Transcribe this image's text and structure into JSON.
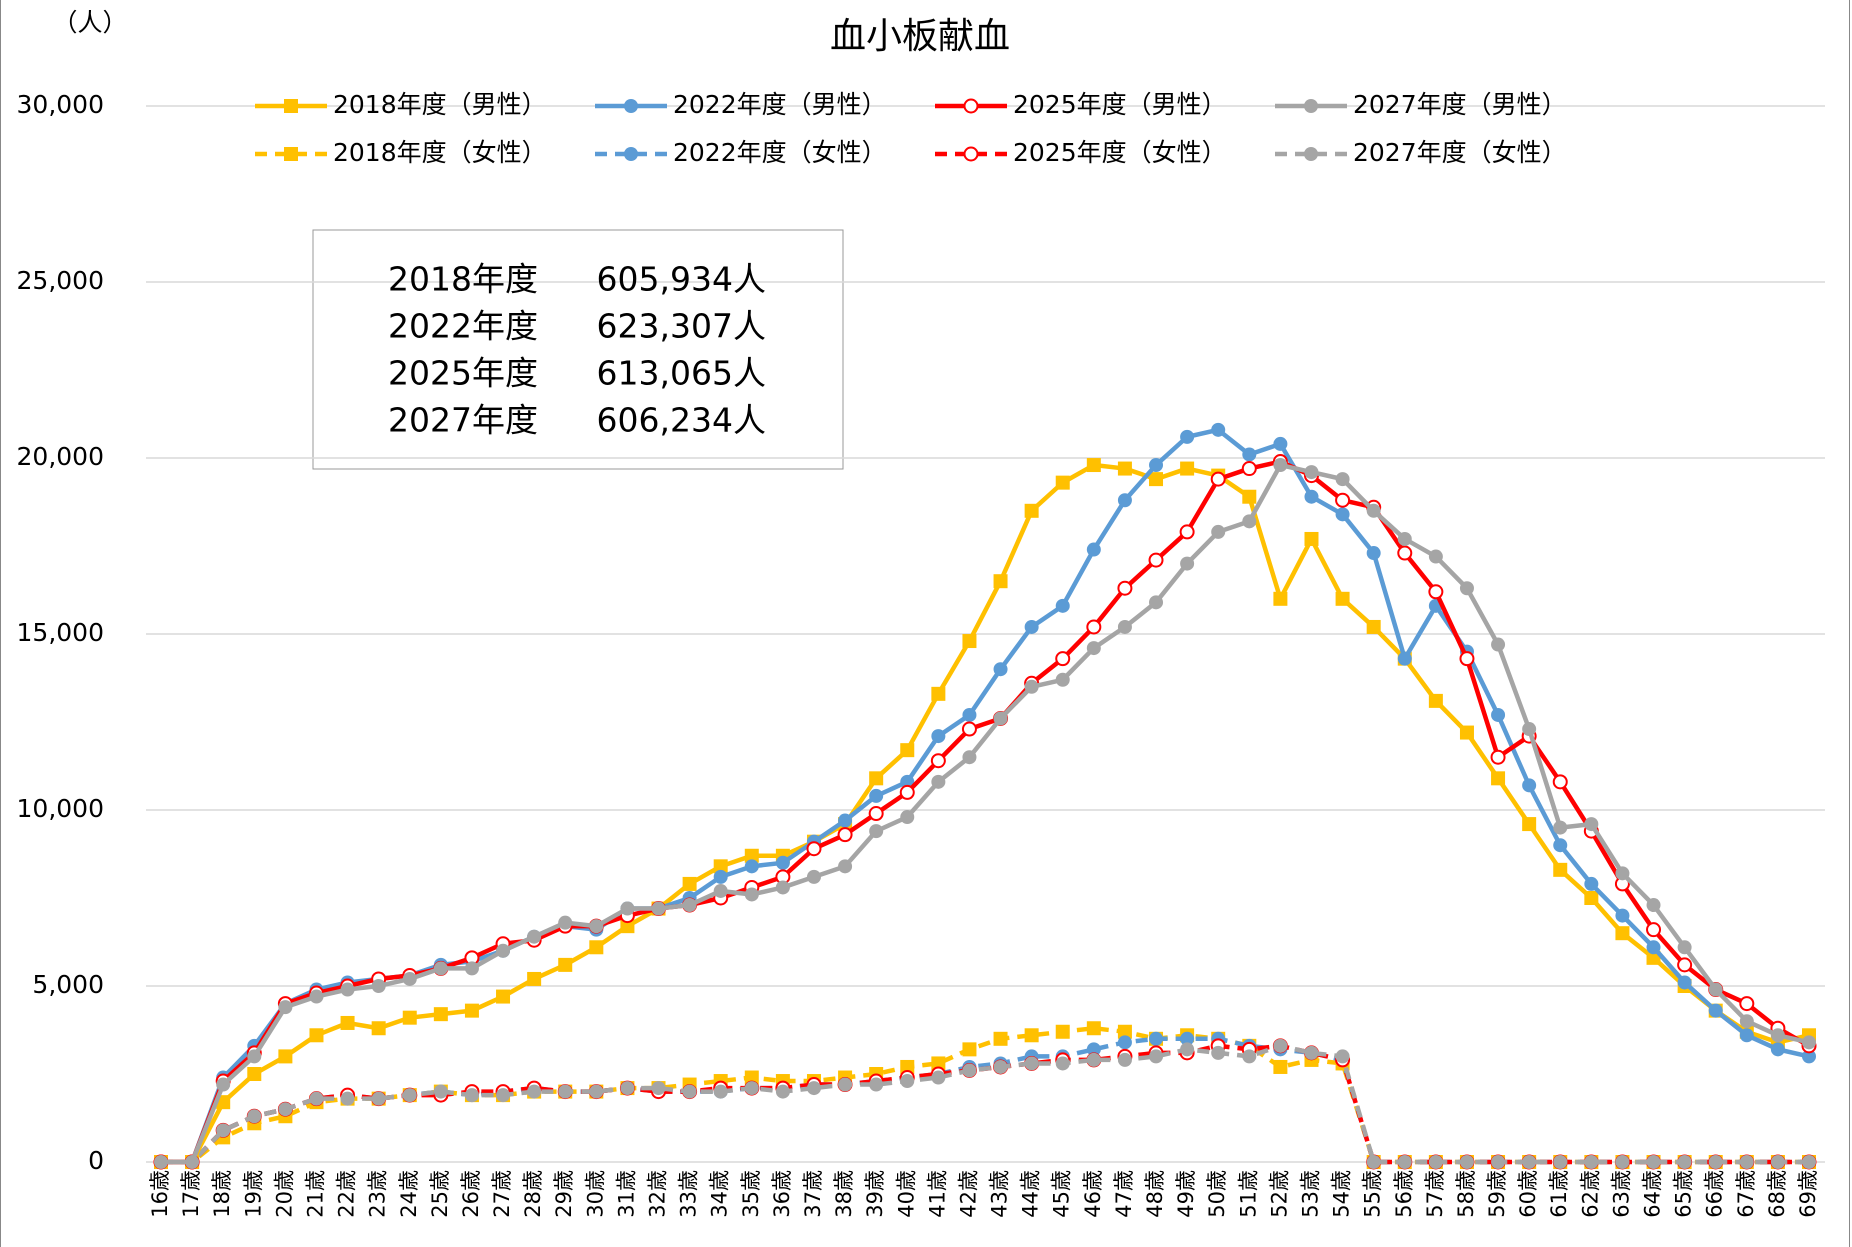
{
  "chart_data": {
    "type": "line",
    "title": "血小板献血",
    "y_unit_label": "（人）",
    "categories": [
      "16歳",
      "17歳",
      "18歳",
      "19歳",
      "20歳",
      "21歳",
      "22歳",
      "23歳",
      "24歳",
      "25歳",
      "26歳",
      "27歳",
      "28歳",
      "29歳",
      "30歳",
      "31歳",
      "32歳",
      "33歳",
      "34歳",
      "35歳",
      "36歳",
      "37歳",
      "38歳",
      "39歳",
      "40歳",
      "41歳",
      "42歳",
      "43歳",
      "44歳",
      "45歳",
      "46歳",
      "47歳",
      "48歳",
      "49歳",
      "50歳",
      "51歳",
      "52歳",
      "53歳",
      "54歳",
      "55歳",
      "56歳",
      "57歳",
      "58歳",
      "59歳",
      "60歳",
      "61歳",
      "62歳",
      "63歳",
      "64歳",
      "65歳",
      "66歳",
      "67歳",
      "68歳",
      "69歳"
    ],
    "ylim": [
      0,
      30000
    ],
    "yticks": [
      0,
      {
        "value": 5000,
        "label": "5,000"
      },
      {
        "value": 10000,
        "label": "10,000"
      },
      {
        "value": 15000,
        "label": "15,000"
      },
      {
        "value": 20000,
        "label": "20,000"
      },
      {
        "value": 25000,
        "label": "25,000"
      },
      {
        "value": 30000,
        "label": "30,000"
      }
    ],
    "grid": true,
    "series": [
      {
        "name": "2018年度（男性）",
        "color": "#FFC000",
        "dash": false,
        "marker": "square",
        "values": [
          0,
          0,
          1700,
          2500,
          3000,
          3600,
          3950,
          3800,
          4100,
          4200,
          4300,
          4700,
          5200,
          5600,
          6100,
          6700,
          7200,
          7900,
          8400,
          8700,
          8700,
          9100,
          9600,
          10900,
          11700,
          13300,
          14800,
          16500,
          18500,
          19300,
          19800,
          19700,
          19400,
          19700,
          19500,
          18900,
          16000,
          17700,
          16000,
          15200,
          14300,
          13100,
          12200,
          10900,
          9600,
          8300,
          7500,
          6500,
          5800,
          5000,
          4300,
          3700,
          3400,
          3600
        ]
      },
      {
        "name": "2022年度（男性）",
        "color": "#5B9BD5",
        "dash": false,
        "marker": "circle",
        "values": [
          0,
          0,
          2400,
          3300,
          4500,
          4900,
          5100,
          5200,
          5300,
          5600,
          5700,
          6000,
          6400,
          6700,
          6600,
          7200,
          7200,
          7500,
          8100,
          8400,
          8500,
          9100,
          9700,
          10400,
          10800,
          12100,
          12700,
          14000,
          15200,
          15800,
          17400,
          18800,
          19800,
          20600,
          20800,
          20100,
          20400,
          18900,
          18400,
          17300,
          14300,
          15800,
          14500,
          12700,
          10700,
          9000,
          7900,
          7000,
          6100,
          5100,
          4300,
          3600,
          3200,
          3000
        ]
      },
      {
        "name": "2025年度（男性）",
        "color": "#FF0000",
        "dash": false,
        "marker": "open-circle",
        "values": [
          0,
          0,
          2300,
          3100,
          4500,
          4800,
          5000,
          5200,
          5300,
          5500,
          5800,
          6200,
          6300,
          6700,
          6700,
          7000,
          7200,
          7300,
          7500,
          7800,
          8100,
          8900,
          9300,
          9900,
          10500,
          11400,
          12300,
          12600,
          13600,
          14300,
          15200,
          16300,
          17100,
          17900,
          19400,
          19700,
          19900,
          19500,
          18800,
          18600,
          17300,
          16200,
          14300,
          11500,
          12100,
          10800,
          9400,
          7900,
          6600,
          5600,
          4900,
          4500,
          3800,
          3300
        ]
      },
      {
        "name": "2027年度（男性）",
        "color": "#A5A5A5",
        "dash": false,
        "marker": "circle",
        "values": [
          0,
          0,
          2200,
          3000,
          4400,
          4700,
          4900,
          5000,
          5200,
          5500,
          5500,
          6000,
          6400,
          6800,
          6700,
          7200,
          7200,
          7300,
          7700,
          7600,
          7800,
          8100,
          8400,
          9400,
          9800,
          10800,
          11500,
          12600,
          13500,
          13700,
          14600,
          15200,
          15900,
          17000,
          17900,
          18200,
          19800,
          19600,
          19400,
          18500,
          17700,
          17200,
          16300,
          14700,
          12300,
          9500,
          9600,
          8200,
          7300,
          6100,
          4900,
          4000,
          3600,
          3400
        ]
      },
      {
        "name": "2018年度（女性）",
        "color": "#FFC000",
        "dash": true,
        "marker": "square",
        "values": [
          0,
          0,
          700,
          1100,
          1300,
          1700,
          1800,
          1800,
          1900,
          2000,
          1900,
          1900,
          2000,
          2000,
          2000,
          2100,
          2100,
          2200,
          2300,
          2400,
          2300,
          2300,
          2400,
          2500,
          2700,
          2800,
          3200,
          3500,
          3600,
          3700,
          3800,
          3700,
          3500,
          3600,
          3500,
          3300,
          2700,
          2900,
          2800,
          0,
          0,
          0,
          0,
          0,
          0,
          0,
          0,
          0,
          0,
          0,
          0,
          0,
          0,
          0
        ]
      },
      {
        "name": "2022年度（女性）",
        "color": "#5B9BD5",
        "dash": true,
        "marker": "circle",
        "values": [
          0,
          0,
          900,
          1300,
          1500,
          1800,
          1900,
          1800,
          1900,
          2000,
          1900,
          2000,
          2100,
          2000,
          2000,
          2100,
          2000,
          2000,
          2000,
          2100,
          2100,
          2200,
          2200,
          2300,
          2400,
          2500,
          2700,
          2800,
          3000,
          3000,
          3200,
          3400,
          3500,
          3500,
          3500,
          3300,
          3200,
          3100,
          2900,
          0,
          0,
          0,
          0,
          0,
          0,
          0,
          0,
          0,
          0,
          0,
          0,
          0,
          0,
          0
        ]
      },
      {
        "name": "2025年度（女性）",
        "color": "#FF0000",
        "dash": true,
        "marker": "open-circle",
        "values": [
          0,
          0,
          900,
          1300,
          1500,
          1800,
          1900,
          1800,
          1900,
          1900,
          2000,
          2000,
          2100,
          2000,
          2000,
          2100,
          2000,
          2000,
          2100,
          2100,
          2100,
          2200,
          2200,
          2300,
          2400,
          2500,
          2600,
          2700,
          2800,
          2900,
          2900,
          3000,
          3100,
          3100,
          3300,
          3200,
          3300,
          3100,
          2900,
          0,
          0,
          0,
          0,
          0,
          0,
          0,
          0,
          0,
          0,
          0,
          0,
          0,
          0,
          0
        ]
      },
      {
        "name": "2027年度（女性）",
        "color": "#A5A5A5",
        "dash": true,
        "marker": "circle",
        "values": [
          0,
          0,
          900,
          1300,
          1500,
          1800,
          1800,
          1800,
          1900,
          2000,
          1900,
          1900,
          2000,
          2000,
          2000,
          2100,
          2100,
          2000,
          2000,
          2100,
          2000,
          2100,
          2200,
          2200,
          2300,
          2400,
          2600,
          2700,
          2800,
          2800,
          2900,
          2900,
          3000,
          3200,
          3100,
          3000,
          3300,
          3100,
          3000,
          0,
          0,
          0,
          0,
          0,
          0,
          0,
          0,
          0,
          0,
          0,
          0,
          0,
          0,
          0
        ]
      }
    ],
    "summary": [
      {
        "year": "2018年度",
        "total": "605,934人"
      },
      {
        "year": "2022年度",
        "total": "623,307人"
      },
      {
        "year": "2025年度",
        "total": "613,065人"
      },
      {
        "year": "2027年度",
        "total": "606,234人"
      }
    ]
  }
}
